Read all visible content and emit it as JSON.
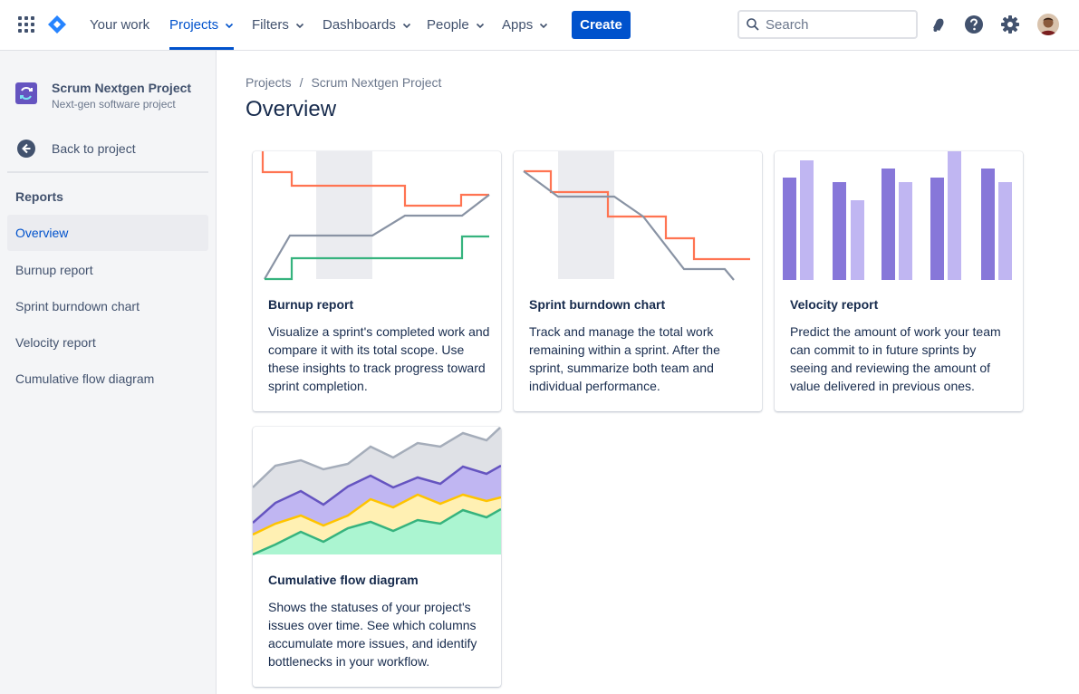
{
  "topnav": {
    "items": [
      {
        "label": "Your work",
        "has_dropdown": false,
        "active": false
      },
      {
        "label": "Projects",
        "has_dropdown": true,
        "active": true
      },
      {
        "label": "Filters",
        "has_dropdown": true,
        "active": false
      },
      {
        "label": "Dashboards",
        "has_dropdown": true,
        "active": false
      },
      {
        "label": "People",
        "has_dropdown": true,
        "active": false
      },
      {
        "label": "Apps",
        "has_dropdown": true,
        "active": false
      }
    ],
    "create_label": "Create",
    "search_placeholder": "Search",
    "icons": [
      "apps-grid-icon",
      "jira-logo-icon",
      "notifications-icon",
      "help-icon",
      "settings-icon"
    ],
    "colors": {
      "accent": "#0052cc",
      "text": "#42526e"
    }
  },
  "sidebar": {
    "project_name": "Scrum Nextgen Project",
    "project_type": "Next-gen software project",
    "back_label": "Back to project",
    "section_title": "Reports",
    "items": [
      {
        "label": "Overview",
        "active": true
      },
      {
        "label": "Burnup report",
        "active": false
      },
      {
        "label": "Sprint burndown chart",
        "active": false
      },
      {
        "label": "Velocity report",
        "active": false
      },
      {
        "label": "Cumulative flow diagram",
        "active": false
      }
    ]
  },
  "main": {
    "breadcrumb": [
      "Projects",
      "Scrum Nextgen Project"
    ],
    "breadcrumb_separator": "/",
    "title": "Overview",
    "cards": [
      {
        "title": "Burnup report",
        "description": "Visualize a sprint's completed work and compare it with its total scope. Use these insights to track progress toward sprint completion.",
        "illustration": "burnup-chart-illustration"
      },
      {
        "title": "Sprint burndown chart",
        "description": "Track and manage the total work remaining within a sprint. After the sprint, summarize both team and individual performance.",
        "illustration": "burndown-chart-illustration"
      },
      {
        "title": "Velocity report",
        "description": "Predict the amount of work your team can commit to in future sprints by seeing and reviewing the amount of value delivered in previous ones.",
        "illustration": "velocity-chart-illustration"
      },
      {
        "title": "Cumulative flow diagram",
        "description": "Shows the statuses of your project's issues over time. See which columns accumulate more issues, and identify bottlenecks in your workflow.",
        "illustration": "cumulative-flow-illustration"
      }
    ]
  }
}
